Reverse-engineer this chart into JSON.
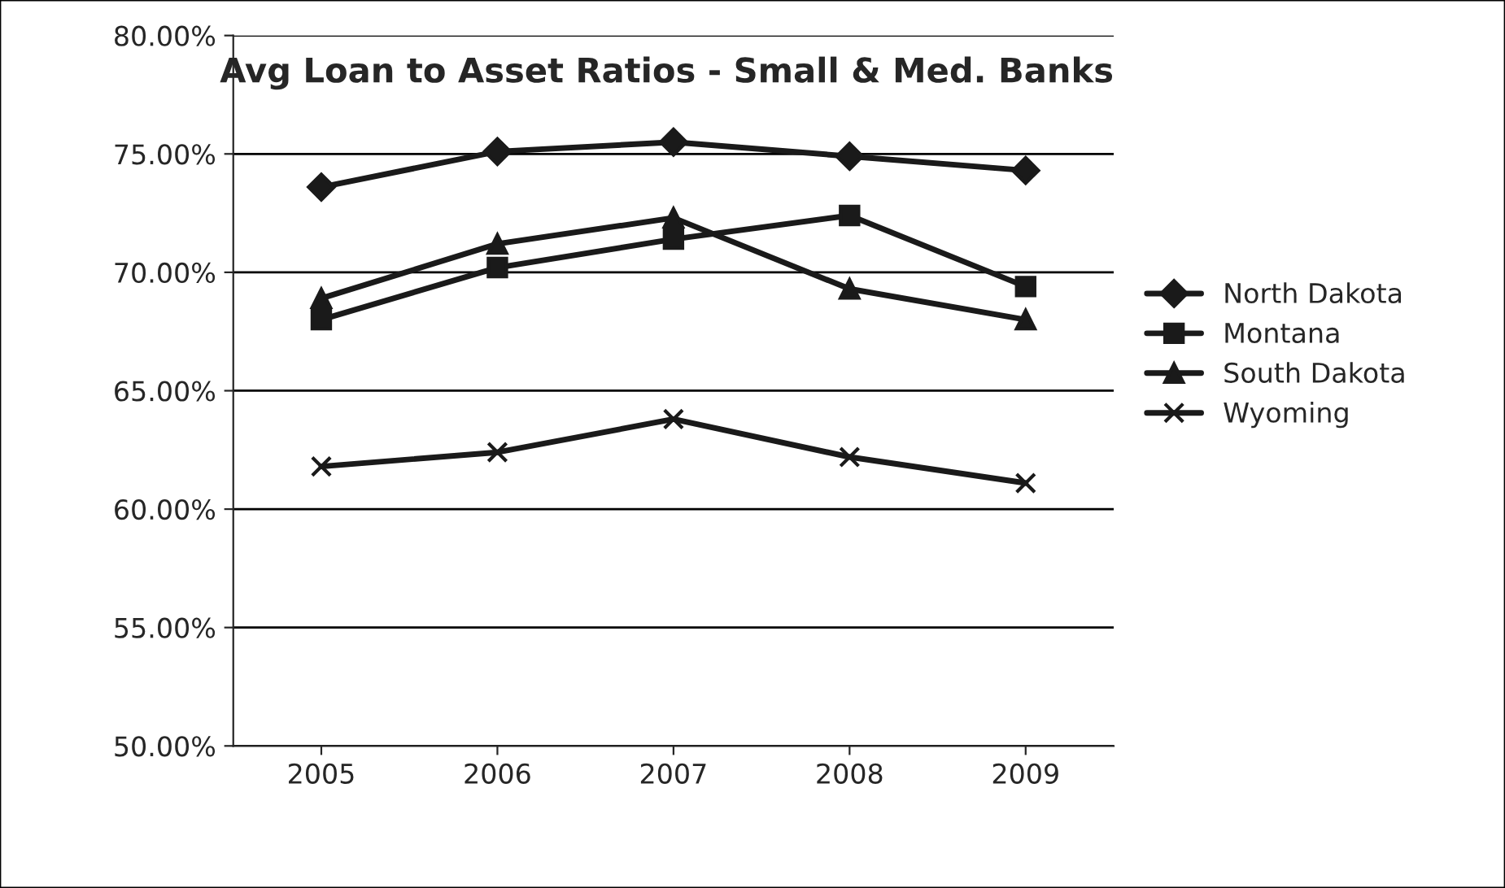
{
  "chart_data": {
    "type": "line",
    "title": "Avg Loan to Asset Ratios - Small & Med. Banks",
    "categories": [
      "2005",
      "2006",
      "2007",
      "2008",
      "2009"
    ],
    "series": [
      {
        "name": "North Dakota",
        "color": "#1a1a1a",
        "marker": "diamond",
        "values": [
          73.6,
          75.1,
          75.5,
          74.9,
          74.3
        ]
      },
      {
        "name": "Montana",
        "color": "#1a1a1a",
        "marker": "square",
        "values": [
          68.0,
          70.2,
          71.4,
          72.4,
          69.4
        ]
      },
      {
        "name": "South Dakota",
        "color": "#1a1a1a",
        "marker": "triangle",
        "values": [
          68.9,
          71.2,
          72.3,
          69.3,
          68.0
        ]
      },
      {
        "name": "Wyoming",
        "color": "#1a1a1a",
        "marker": "cross",
        "values": [
          61.8,
          62.4,
          63.8,
          62.2,
          61.1
        ]
      }
    ],
    "ylim": [
      50,
      80
    ],
    "yticks": [
      {
        "value": 50,
        "label": "50.00%"
      },
      {
        "value": 55,
        "label": "55.00%"
      },
      {
        "value": 60,
        "label": "60.00%"
      },
      {
        "value": 65,
        "label": "65.00%"
      },
      {
        "value": 70,
        "label": "70.00%"
      },
      {
        "value": 75,
        "label": "75.00%"
      },
      {
        "value": 80,
        "label": "80.00%"
      }
    ],
    "grid": "y",
    "legend": "right"
  }
}
